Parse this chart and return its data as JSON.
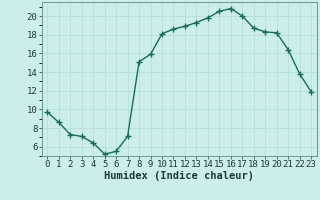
{
  "x": [
    0,
    1,
    2,
    3,
    4,
    5,
    6,
    7,
    8,
    9,
    10,
    11,
    12,
    13,
    14,
    15,
    16,
    17,
    18,
    19,
    20,
    21,
    22,
    23
  ],
  "y": [
    9.7,
    8.6,
    7.3,
    7.1,
    6.4,
    5.2,
    5.5,
    7.1,
    15.1,
    15.9,
    18.1,
    18.6,
    18.9,
    19.3,
    19.8,
    20.5,
    20.8,
    20.0,
    18.7,
    18.3,
    18.2,
    16.4,
    13.8,
    11.9
  ],
  "line_color": "#1a6b5a",
  "marker": "+",
  "marker_size": 4,
  "linewidth": 1.0,
  "xlabel": "Humidex (Indice chaleur)",
  "xlim": [
    -0.5,
    23.5
  ],
  "ylim": [
    5.0,
    21.5
  ],
  "yticks": [
    6,
    8,
    10,
    12,
    14,
    16,
    18,
    20
  ],
  "xticks": [
    0,
    1,
    2,
    3,
    4,
    5,
    6,
    7,
    8,
    9,
    10,
    11,
    12,
    13,
    14,
    15,
    16,
    17,
    18,
    19,
    20,
    21,
    22,
    23
  ],
  "background_color": "#cceee8",
  "grid_color_major": "#b8ddd8",
  "grid_color_minor": "#cce8e4",
  "tick_fontsize": 6.5,
  "xlabel_fontsize": 7.5
}
